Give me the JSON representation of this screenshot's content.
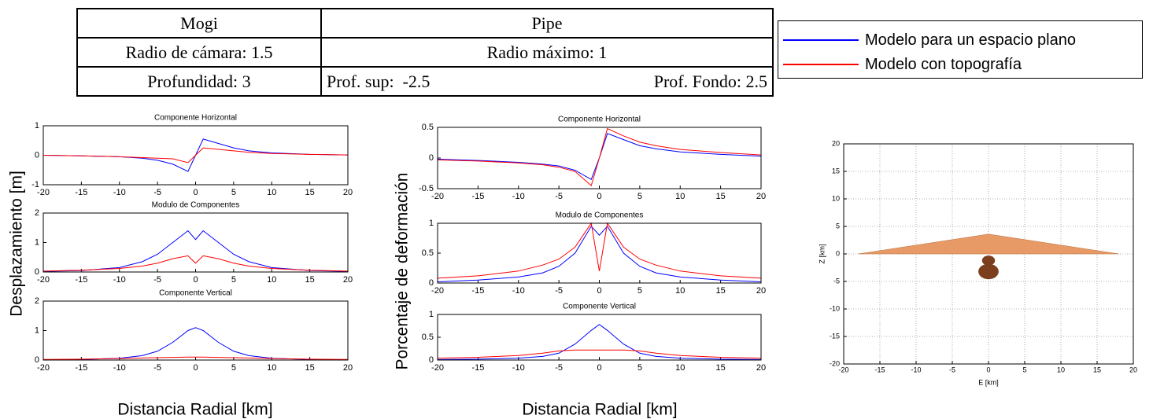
{
  "table": {
    "rows": [
      [
        "Mogi",
        "Pipe"
      ],
      [
        "Radio de cámara: 1.5",
        "Radio máximo: 1"
      ],
      [
        "Profundidad: 3",
        "Prof. sup:  -2.5",
        "Prof. Fondo: 2.5"
      ]
    ]
  },
  "legend": [
    {
      "name": "Modelo para un espacio plano",
      "color": "#0000ff"
    },
    {
      "name": "Modelo con topografía",
      "color": "#ff0000"
    }
  ],
  "chart_data": [
    {
      "type": "line",
      "title": "Componente Horizontal",
      "x": [
        -20,
        -15,
        -10,
        -7,
        -5,
        -3,
        -1,
        0,
        1,
        3,
        5,
        7,
        10,
        15,
        20
      ],
      "series": [
        {
          "color": "#0000ff",
          "values": [
            0,
            -0.02,
            -0.05,
            -0.1,
            -0.17,
            -0.3,
            -0.55,
            0,
            0.55,
            0.4,
            0.25,
            0.15,
            0.08,
            0.03,
            0.01
          ]
        },
        {
          "color": "#ff0000",
          "values": [
            0,
            -0.02,
            -0.05,
            -0.08,
            -0.1,
            -0.12,
            -0.25,
            0,
            0.25,
            0.2,
            0.15,
            0.1,
            0.06,
            0.03,
            0.01
          ]
        }
      ],
      "xlim": [
        -20,
        20
      ],
      "xticks": [
        -20,
        -15,
        -10,
        -5,
        0,
        5,
        10,
        15,
        20
      ],
      "ylim": [
        -1,
        1
      ],
      "yticks": [
        -1,
        0,
        1
      ]
    },
    {
      "type": "line",
      "title": "Modulo de Componentes",
      "ylabel": "Desplazamiento [m]",
      "x": [
        -20,
        -15,
        -10,
        -7,
        -5,
        -3,
        -1,
        0,
        1,
        3,
        5,
        7,
        10,
        15,
        20
      ],
      "series": [
        {
          "color": "#0000ff",
          "values": [
            0.02,
            0.05,
            0.15,
            0.35,
            0.6,
            1.0,
            1.4,
            1.1,
            1.4,
            1.0,
            0.6,
            0.35,
            0.15,
            0.05,
            0.02
          ]
        },
        {
          "color": "#ff0000",
          "values": [
            0.03,
            0.06,
            0.12,
            0.2,
            0.3,
            0.45,
            0.55,
            0.3,
            0.55,
            0.45,
            0.3,
            0.2,
            0.12,
            0.06,
            0.03
          ]
        }
      ],
      "xlim": [
        -20,
        20
      ],
      "xticks": [
        -20,
        -15,
        -10,
        -5,
        0,
        5,
        10,
        15,
        20
      ],
      "ylim": [
        0,
        2
      ],
      "yticks": [
        0,
        1,
        2
      ]
    },
    {
      "type": "line",
      "title": "Componente Vertical",
      "xlabel": "Distancia Radial [km]",
      "x": [
        -20,
        -15,
        -10,
        -7,
        -5,
        -3,
        -1,
        0,
        1,
        3,
        5,
        7,
        10,
        15,
        20
      ],
      "series": [
        {
          "color": "#0000ff",
          "values": [
            0.01,
            0.02,
            0.06,
            0.15,
            0.3,
            0.6,
            1.0,
            1.1,
            1.0,
            0.6,
            0.3,
            0.15,
            0.06,
            0.02,
            0.01
          ]
        },
        {
          "color": "#ff0000",
          "values": [
            0.02,
            0.03,
            0.05,
            0.07,
            0.08,
            0.09,
            0.1,
            0.1,
            0.1,
            0.09,
            0.08,
            0.07,
            0.05,
            0.03,
            0.02
          ]
        }
      ],
      "xlim": [
        -20,
        20
      ],
      "xticks": [
        -20,
        -15,
        -10,
        -5,
        0,
        5,
        10,
        15,
        20
      ],
      "ylim": [
        0,
        2
      ],
      "yticks": [
        0,
        1,
        2
      ]
    },
    {
      "type": "line",
      "title": "Componente Horizontal",
      "x": [
        -20,
        -15,
        -10,
        -7,
        -5,
        -3,
        -1,
        0,
        1,
        3,
        5,
        7,
        10,
        15,
        20
      ],
      "series": [
        {
          "color": "#0000ff",
          "values": [
            -0.02,
            -0.04,
            -0.07,
            -0.1,
            -0.13,
            -0.2,
            -0.35,
            0,
            0.4,
            0.3,
            0.2,
            0.15,
            0.1,
            0.06,
            0.03
          ]
        },
        {
          "color": "#ff0000",
          "values": [
            -0.03,
            -0.05,
            -0.08,
            -0.11,
            -0.15,
            -0.22,
            -0.45,
            0,
            0.48,
            0.36,
            0.26,
            0.2,
            0.14,
            0.09,
            0.05
          ]
        }
      ],
      "xlim": [
        -20,
        20
      ],
      "xticks": [
        -20,
        -15,
        -10,
        -5,
        0,
        5,
        10,
        15,
        20
      ],
      "ylim": [
        -0.5,
        0.5
      ],
      "yticks": [
        -0.5,
        0,
        0.5
      ]
    },
    {
      "type": "line",
      "title": "Modulo de Componentes",
      "ylabel": "Porcentaje de deformación",
      "x": [
        -20,
        -15,
        -10,
        -7,
        -5,
        -3,
        -1,
        0,
        1,
        3,
        5,
        7,
        10,
        15,
        20
      ],
      "series": [
        {
          "color": "#0000ff",
          "values": [
            0.02,
            0.05,
            0.1,
            0.17,
            0.28,
            0.5,
            0.95,
            0.8,
            0.95,
            0.5,
            0.28,
            0.17,
            0.1,
            0.05,
            0.02
          ]
        },
        {
          "color": "#ff0000",
          "values": [
            0.08,
            0.12,
            0.2,
            0.3,
            0.4,
            0.6,
            1.0,
            0.2,
            1.0,
            0.6,
            0.4,
            0.3,
            0.2,
            0.12,
            0.08
          ]
        }
      ],
      "xlim": [
        -20,
        20
      ],
      "xticks": [
        -20,
        -15,
        -10,
        -5,
        0,
        5,
        10,
        15,
        20
      ],
      "ylim": [
        0,
        1
      ],
      "yticks": [
        0,
        0.5,
        1
      ]
    },
    {
      "type": "line",
      "title": "Componente Vertical",
      "xlabel": "Distancia Radial [km]",
      "x": [
        -20,
        -15,
        -10,
        -7,
        -5,
        -3,
        -1,
        0,
        1,
        3,
        5,
        7,
        10,
        15,
        20
      ],
      "series": [
        {
          "color": "#0000ff",
          "values": [
            0.01,
            0.02,
            0.04,
            0.08,
            0.15,
            0.35,
            0.65,
            0.78,
            0.65,
            0.35,
            0.15,
            0.08,
            0.04,
            0.02,
            0.01
          ]
        },
        {
          "color": "#ff0000",
          "values": [
            0.04,
            0.06,
            0.1,
            0.15,
            0.2,
            0.22,
            0.22,
            0.22,
            0.22,
            0.22,
            0.2,
            0.15,
            0.1,
            0.06,
            0.04
          ]
        }
      ],
      "xlim": [
        -20,
        20
      ],
      "xticks": [
        -20,
        -15,
        -10,
        -5,
        0,
        5,
        10,
        15,
        20
      ],
      "ylim": [
        0,
        1
      ],
      "yticks": [
        0,
        0.5,
        1
      ]
    },
    {
      "type": "area",
      "xlabel": "E [km]",
      "ylabel": "Z [km]",
      "x": [
        -18,
        0,
        18
      ],
      "values": [
        0,
        3.6,
        0
      ],
      "color": "#e89a66",
      "bubbles": {
        "x": [
          0,
          0
        ],
        "values": [
          -1.2,
          -3.2
        ],
        "sizes": [
          0.9,
          1.4
        ],
        "color": "#7b3f1e"
      },
      "xlim": [
        -20,
        20
      ],
      "xticks": [
        -20,
        -15,
        -10,
        -5,
        0,
        5,
        10,
        15,
        20
      ],
      "ylim": [
        -20,
        20
      ],
      "yticks": [
        -20,
        -15,
        -10,
        -5,
        0,
        5,
        10,
        15,
        20
      ],
      "grid": true
    }
  ]
}
